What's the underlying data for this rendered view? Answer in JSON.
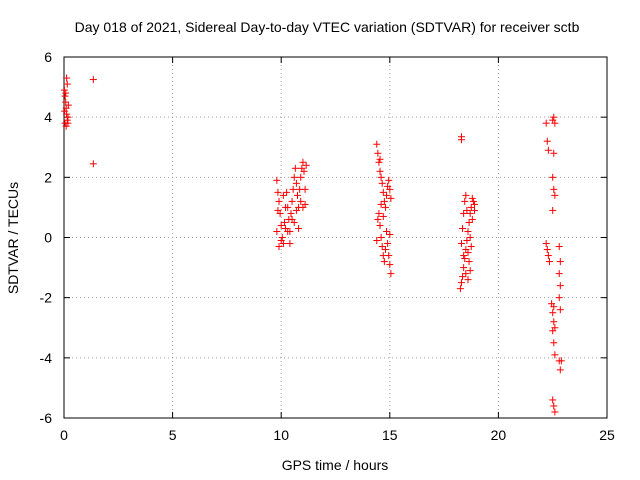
{
  "chart_data": {
    "type": "scatter",
    "title": "Day 018 of 2021, Sidereal Day-to-day VTEC variation (SDTVAR) for receiver sctb",
    "xlabel": "GPS time / hours",
    "ylabel": "SDTVAR / TECUs",
    "xlim": [
      0,
      25
    ],
    "ylim": [
      -6,
      6
    ],
    "xticks": [
      0,
      5,
      10,
      15,
      20,
      25
    ],
    "yticks": [
      -6,
      -4,
      -2,
      0,
      2,
      4,
      6
    ],
    "grid": true,
    "marker": "plus",
    "color": "#ff0000",
    "series": [
      {
        "name": "SDTVAR",
        "points": [
          [
            0.02,
            4.9
          ],
          [
            0.05,
            4.7
          ],
          [
            0.08,
            4.5
          ],
          [
            0.1,
            4.3
          ],
          [
            0.12,
            4.1
          ],
          [
            0.15,
            3.9
          ],
          [
            0.05,
            3.8
          ],
          [
            0.1,
            3.7
          ],
          [
            0.18,
            4.0
          ],
          [
            0.2,
            4.4
          ],
          [
            0.08,
            4.8
          ],
          [
            0.15,
            5.1
          ],
          [
            0.12,
            5.3
          ],
          [
            0.03,
            4.2
          ],
          [
            0.18,
            3.8
          ],
          [
            1.35,
            5.25
          ],
          [
            1.35,
            2.45
          ],
          [
            9.8,
            1.9
          ],
          [
            9.85,
            1.5
          ],
          [
            9.9,
            1.2
          ],
          [
            9.95,
            0.8
          ],
          [
            10.0,
            0.4
          ],
          [
            10.05,
            0.0
          ],
          [
            10.1,
            -0.2
          ],
          [
            10.15,
            0.5
          ],
          [
            10.2,
            1.0
          ],
          [
            10.25,
            1.5
          ],
          [
            10.3,
            1.0
          ],
          [
            10.35,
            0.6
          ],
          [
            10.4,
            0.2
          ],
          [
            10.45,
            0.8
          ],
          [
            10.5,
            1.2
          ],
          [
            10.55,
            1.6
          ],
          [
            10.6,
            2.0
          ],
          [
            10.65,
            2.3
          ],
          [
            10.7,
            1.8
          ],
          [
            10.75,
            1.4
          ],
          [
            10.8,
            1.0
          ],
          [
            10.85,
            1.6
          ],
          [
            10.9,
            2.0
          ],
          [
            10.95,
            2.3
          ],
          [
            11.0,
            2.5
          ],
          [
            11.05,
            2.2
          ],
          [
            11.1,
            1.6
          ],
          [
            11.15,
            2.4
          ],
          [
            9.8,
            0.2
          ],
          [
            9.9,
            -0.3
          ],
          [
            10.0,
            -0.1
          ],
          [
            10.2,
            0.3
          ],
          [
            10.4,
            -0.2
          ],
          [
            10.6,
            0.5
          ],
          [
            10.8,
            0.3
          ],
          [
            11.0,
            1.0
          ],
          [
            9.85,
            0.9
          ],
          [
            10.1,
            1.4
          ],
          [
            10.3,
            0.2
          ],
          [
            10.5,
            0.6
          ],
          [
            10.7,
            0.9
          ],
          [
            10.9,
            1.2
          ],
          [
            11.1,
            1.1
          ],
          [
            14.4,
            3.1
          ],
          [
            14.45,
            2.8
          ],
          [
            14.5,
            2.5
          ],
          [
            14.55,
            2.2
          ],
          [
            14.6,
            2.0
          ],
          [
            14.65,
            1.8
          ],
          [
            14.7,
            1.5
          ],
          [
            14.75,
            1.2
          ],
          [
            14.8,
            1.0
          ],
          [
            14.85,
            1.4
          ],
          [
            14.9,
            1.7
          ],
          [
            14.95,
            1.9
          ],
          [
            15.0,
            1.6
          ],
          [
            15.05,
            1.3
          ],
          [
            14.5,
            0.8
          ],
          [
            14.55,
            0.4
          ],
          [
            14.6,
            0.0
          ],
          [
            14.65,
            -0.3
          ],
          [
            14.7,
            -0.6
          ],
          [
            14.75,
            -0.8
          ],
          [
            14.9,
            -0.2
          ],
          [
            14.95,
            -0.6
          ],
          [
            15.0,
            -0.9
          ],
          [
            15.05,
            -1.2
          ],
          [
            14.4,
            -0.1
          ],
          [
            14.45,
            0.6
          ],
          [
            14.6,
            1.1
          ],
          [
            14.7,
            0.7
          ],
          [
            14.8,
            -0.4
          ],
          [
            14.85,
            0.2
          ],
          [
            15.0,
            0.1
          ],
          [
            14.55,
            2.6
          ],
          [
            18.3,
            3.35
          ],
          [
            18.3,
            3.25
          ],
          [
            18.25,
            -1.7
          ],
          [
            18.3,
            -1.5
          ],
          [
            18.35,
            -1.3
          ],
          [
            18.4,
            -1.0
          ],
          [
            18.45,
            -0.7
          ],
          [
            18.5,
            -0.4
          ],
          [
            18.55,
            -0.1
          ],
          [
            18.6,
            0.2
          ],
          [
            18.65,
            0.5
          ],
          [
            18.7,
            0.8
          ],
          [
            18.75,
            1.0
          ],
          [
            18.8,
            1.3
          ],
          [
            18.85,
            1.2
          ],
          [
            18.9,
            1.1
          ],
          [
            18.35,
            0.3
          ],
          [
            18.4,
            0.8
          ],
          [
            18.45,
            1.2
          ],
          [
            18.5,
            1.4
          ],
          [
            18.55,
            0.9
          ],
          [
            18.6,
            -0.5
          ],
          [
            18.65,
            -0.8
          ],
          [
            18.7,
            -1.1
          ],
          [
            18.75,
            -0.3
          ],
          [
            18.3,
            -0.2
          ],
          [
            18.4,
            -0.6
          ],
          [
            18.5,
            -1.2
          ],
          [
            18.6,
            -1.4
          ],
          [
            18.7,
            0.0
          ],
          [
            18.8,
            0.6
          ],
          [
            18.9,
            0.9
          ],
          [
            22.2,
            3.8
          ],
          [
            22.25,
            3.2
          ],
          [
            22.3,
            2.9
          ],
          [
            22.2,
            -0.2
          ],
          [
            22.25,
            -0.4
          ],
          [
            22.3,
            -0.6
          ],
          [
            22.35,
            -0.8
          ],
          [
            22.5,
            3.9
          ],
          [
            22.55,
            4.0
          ],
          [
            22.6,
            3.8
          ],
          [
            22.55,
            2.8
          ],
          [
            22.5,
            2.0
          ],
          [
            22.55,
            1.6
          ],
          [
            22.6,
            1.4
          ],
          [
            22.5,
            0.9
          ],
          [
            22.45,
            -2.2
          ],
          [
            22.5,
            -2.5
          ],
          [
            22.55,
            -2.8
          ],
          [
            22.5,
            -3.1
          ],
          [
            22.55,
            -3.5
          ],
          [
            22.6,
            -3.9
          ],
          [
            22.5,
            -5.4
          ],
          [
            22.55,
            -5.6
          ],
          [
            22.6,
            -5.8
          ],
          [
            22.8,
            -0.3
          ],
          [
            22.85,
            -0.8
          ],
          [
            22.8,
            -1.2
          ],
          [
            22.85,
            -1.6
          ],
          [
            22.8,
            -2.0
          ],
          [
            22.85,
            -2.4
          ],
          [
            22.8,
            -4.1
          ],
          [
            22.85,
            -4.4
          ],
          [
            22.9,
            -4.1
          ],
          [
            22.55,
            -2.3
          ],
          [
            22.6,
            -3.0
          ]
        ]
      }
    ]
  }
}
